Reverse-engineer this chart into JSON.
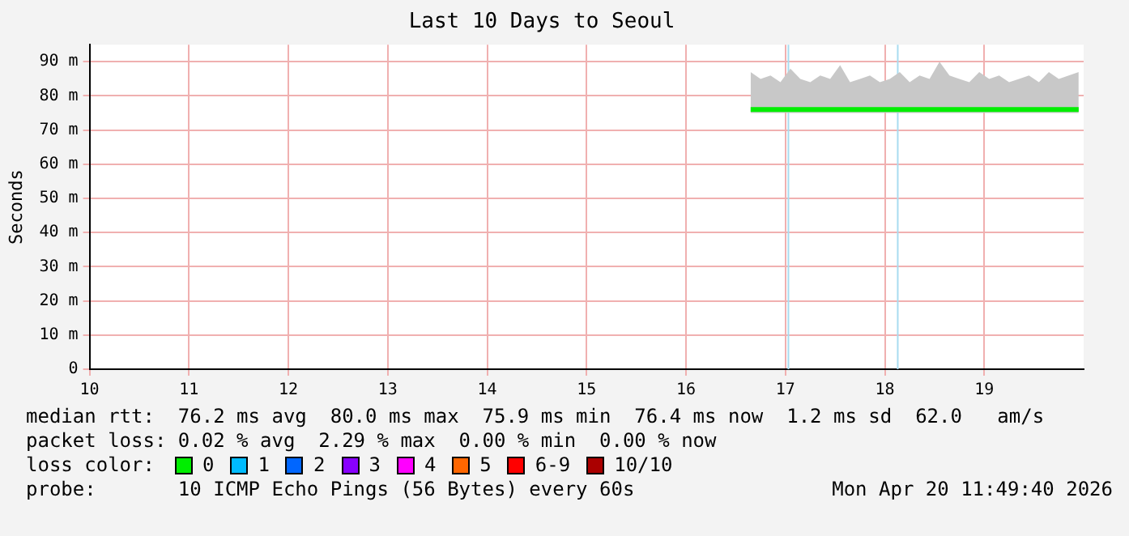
{
  "chart_data": {
    "type": "line",
    "title": "Last 10 Days to Seoul",
    "ylabel": "Seconds",
    "xlim": [
      10,
      20
    ],
    "xticks": [
      10,
      11,
      12,
      13,
      14,
      15,
      16,
      17,
      18,
      19
    ],
    "ylim": [
      0,
      95
    ],
    "yticks": [
      0,
      {
        "value": 10,
        "label": "10 m"
      },
      {
        "value": 20,
        "label": "20 m"
      },
      {
        "value": 30,
        "label": "30 m"
      },
      {
        "value": 40,
        "label": "40 m"
      },
      {
        "value": 50,
        "label": "50 m"
      },
      {
        "value": 60,
        "label": "60 m"
      },
      {
        "value": 70,
        "label": "70 m"
      },
      {
        "value": 80,
        "label": "80 m"
      },
      {
        "value": 90,
        "label": "90 m"
      }
    ],
    "grid": true,
    "legend": false,
    "marker": "none",
    "line_style": "solid",
    "ref_lines": [
      {
        "axis": "x",
        "value": 17.03,
        "color": "#a8dcf0"
      },
      {
        "axis": "x",
        "value": 18.13,
        "color": "#a8dcf0"
      }
    ],
    "series": [
      {
        "color": "#00ee00",
        "x": [
          16.65,
          16.75,
          16.85,
          16.95,
          17.05,
          17.15,
          17.25,
          17.35,
          17.45,
          17.55,
          17.65,
          17.75,
          17.85,
          17.95,
          18.05,
          18.15,
          18.25,
          18.35,
          18.45,
          18.55,
          18.65,
          18.75,
          18.85,
          18.95,
          19.05,
          19.15,
          19.25,
          19.35,
          19.45,
          19.55,
          19.65,
          19.75,
          19.85,
          19.95
        ],
        "values": [
          76,
          76,
          76,
          76,
          76,
          76,
          76,
          76,
          76,
          76,
          76,
          76,
          76,
          76,
          76,
          76,
          76,
          76,
          76,
          76,
          76,
          76,
          76,
          76,
          76,
          76,
          76,
          76,
          76,
          76,
          76,
          76,
          76,
          76
        ],
        "lower": [
          75,
          75,
          75,
          75,
          75,
          75,
          75,
          75,
          75,
          75,
          75,
          75,
          75,
          75,
          75,
          75,
          75,
          75,
          75,
          75,
          75,
          75,
          75,
          75,
          75,
          75,
          75,
          75,
          75,
          75,
          75,
          75,
          75,
          75
        ],
        "upper": [
          87,
          85,
          86,
          84,
          88,
          85,
          84,
          86,
          85,
          89,
          84,
          85,
          86,
          84,
          85,
          87,
          84,
          86,
          85,
          90,
          86,
          85,
          84,
          87,
          85,
          86,
          84,
          85,
          86,
          84,
          87,
          85,
          86,
          87
        ]
      }
    ],
    "annotations": [
      "median rtt:  76.2 ms avg  80.0 ms max  75.9 ms min  76.4 ms now  1.2 ms sd  62.0   am/s",
      "packet loss: 0.02 % avg  2.29 % max  0.00 % min  0.00 % now",
      "loss color:",
      "0",
      "1",
      "2",
      "3",
      "4",
      "5",
      "6-9",
      "10/10",
      "probe:       10 ICMP Echo Pings (56 Bytes) every 60s",
      "Mon Apr 20 11:49:40 2026"
    ]
  }
}
